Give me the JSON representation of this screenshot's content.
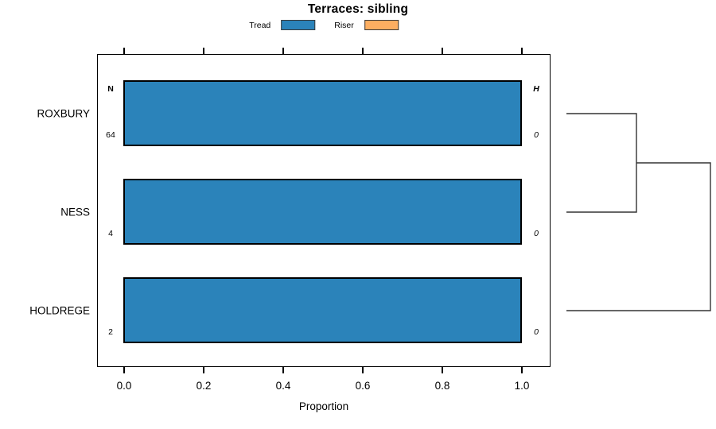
{
  "title": "Terraces: sibling",
  "legend": {
    "items": [
      {
        "label": "Tread",
        "color": "#2b83ba"
      },
      {
        "label": "Riser",
        "color": "#fdae61"
      }
    ]
  },
  "columns": {
    "n_header": "N",
    "h_header": "H"
  },
  "x_axis": {
    "label": "Proportion",
    "ticks": [
      "0.0",
      "0.2",
      "0.4",
      "0.6",
      "0.8",
      "1.0"
    ]
  },
  "rows": [
    {
      "label": "ROXBURY",
      "n": "64",
      "h": "0"
    },
    {
      "label": "NESS",
      "n": "4",
      "h": "0"
    },
    {
      "label": "HOLDREGE",
      "n": "2",
      "h": "0"
    }
  ],
  "chart_data": {
    "type": "bar",
    "orientation": "horizontal",
    "title": "Terraces: sibling",
    "xlabel": "Proportion",
    "xlim": [
      0,
      1
    ],
    "x_ticks": [
      0.0,
      0.2,
      0.4,
      0.6,
      0.8,
      1.0
    ],
    "categories": [
      "ROXBURY",
      "NESS",
      "HOLDREGE"
    ],
    "series": [
      {
        "name": "Tread",
        "color": "#2b83ba",
        "values": [
          1.0,
          1.0,
          1.0
        ]
      },
      {
        "name": "Riser",
        "color": "#fdae61",
        "values": [
          0.0,
          0.0,
          0.0
        ]
      }
    ],
    "n_values": [
      64,
      4,
      2
    ],
    "h_values": [
      0,
      0,
      0
    ],
    "legend_position": "top",
    "grid": false,
    "dendrogram": {
      "leaves": [
        "ROXBURY",
        "NESS",
        "HOLDREGE"
      ],
      "merges": [
        {
          "members": [
            "ROXBURY",
            "NESS"
          ]
        },
        {
          "members": [
            "(ROXBURY,NESS)",
            "HOLDREGE"
          ]
        }
      ]
    }
  }
}
